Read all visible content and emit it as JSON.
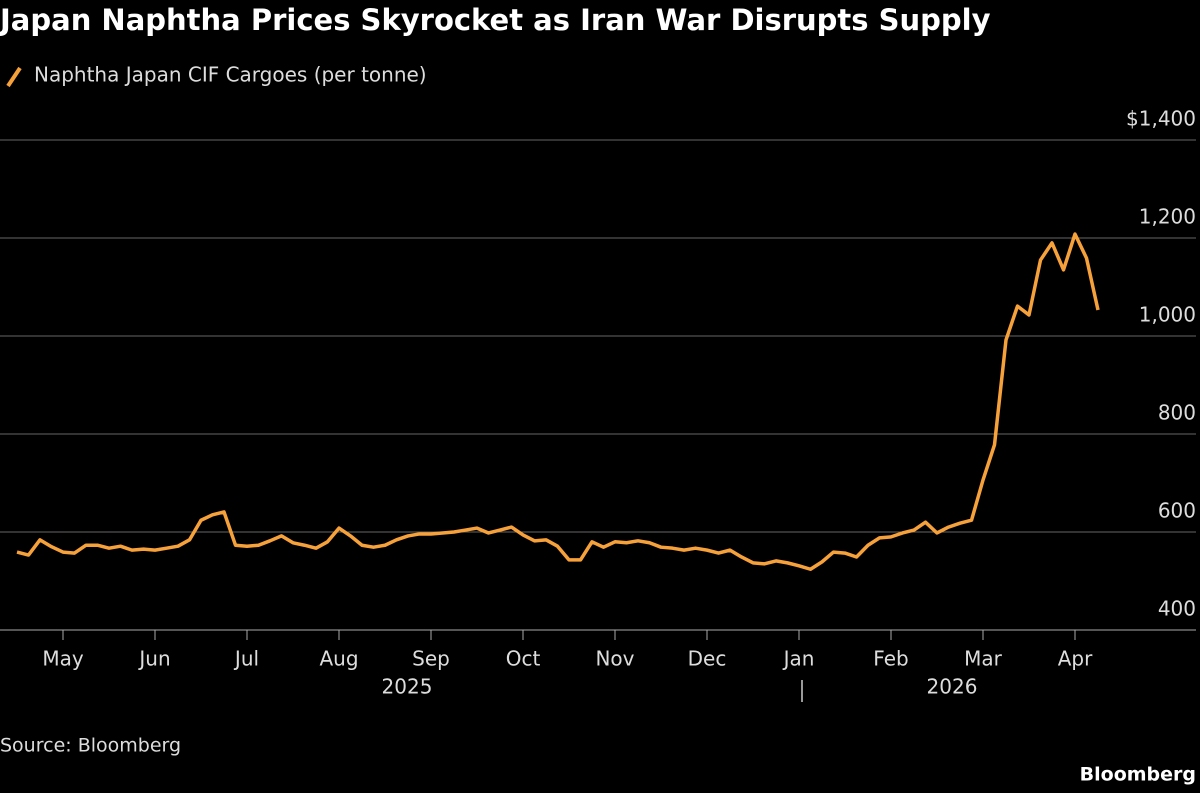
{
  "chart_data": {
    "type": "line",
    "title": "Japan Naphtha Prices Skyrocket as Iran War Disrupts Supply",
    "source": "Source: Bloomberg",
    "brand": "Bloomberg",
    "categories": [
      null,
      null,
      null,
      null,
      "May",
      null,
      null,
      null,
      null,
      null,
      null,
      null,
      "Jun",
      null,
      null,
      null,
      null,
      null,
      null,
      null,
      "Jul",
      null,
      null,
      null,
      null,
      null,
      null,
      null,
      "Aug",
      null,
      null,
      null,
      null,
      null,
      null,
      null,
      "Sep",
      null,
      null,
      null,
      null,
      null,
      null,
      null,
      "Oct",
      null,
      null,
      null,
      null,
      null,
      null,
      null,
      "Nov",
      null,
      null,
      null,
      null,
      null,
      null,
      null,
      "Dec",
      null,
      null,
      null,
      null,
      null,
      null,
      null,
      "Jan",
      null,
      null,
      null,
      null,
      null,
      null,
      null,
      "Feb",
      null,
      null,
      null,
      null,
      null,
      null,
      null,
      "Mar",
      null,
      null,
      null,
      null,
      null,
      null,
      null,
      "Apr",
      null,
      null
    ],
    "year_labels": [
      "2025",
      "2026"
    ],
    "series": [
      {
        "name": "Naphtha Japan CIF Cargoes (per tonne)",
        "color": "#f7a13b",
        "values": [
          559,
          553,
          584,
          570,
          559,
          557,
          573,
          573,
          567,
          571,
          563,
          565,
          563,
          567,
          571,
          584,
          624,
          635,
          641,
          573,
          571,
          573,
          582,
          592,
          578,
          573,
          567,
          580,
          608,
          592,
          573,
          569,
          573,
          584,
          592,
          596,
          596,
          598,
          600,
          604,
          608,
          598,
          604,
          610,
          594,
          582,
          584,
          571,
          543,
          543,
          580,
          569,
          580,
          578,
          582,
          578,
          569,
          567,
          563,
          567,
          563,
          557,
          563,
          549,
          537,
          535,
          541,
          537,
          531,
          524,
          539,
          559,
          557,
          549,
          573,
          588,
          590,
          598,
          604,
          620,
          598,
          610,
          618,
          624,
          706,
          778,
          992,
          1061,
          1043,
          1155,
          1190,
          1135,
          1208,
          1159,
          1053
        ]
      }
    ],
    "ylim": [
      400,
      1400
    ],
    "yticks": [
      {
        "value": 400,
        "label": "400"
      },
      {
        "value": 600,
        "label": "600"
      },
      {
        "value": 800,
        "label": "800"
      },
      {
        "value": 1000,
        "label": "1,000"
      },
      {
        "value": 1200,
        "label": "1,200"
      },
      {
        "value": 1400,
        "label": "$1,400"
      }
    ],
    "grid": true
  }
}
